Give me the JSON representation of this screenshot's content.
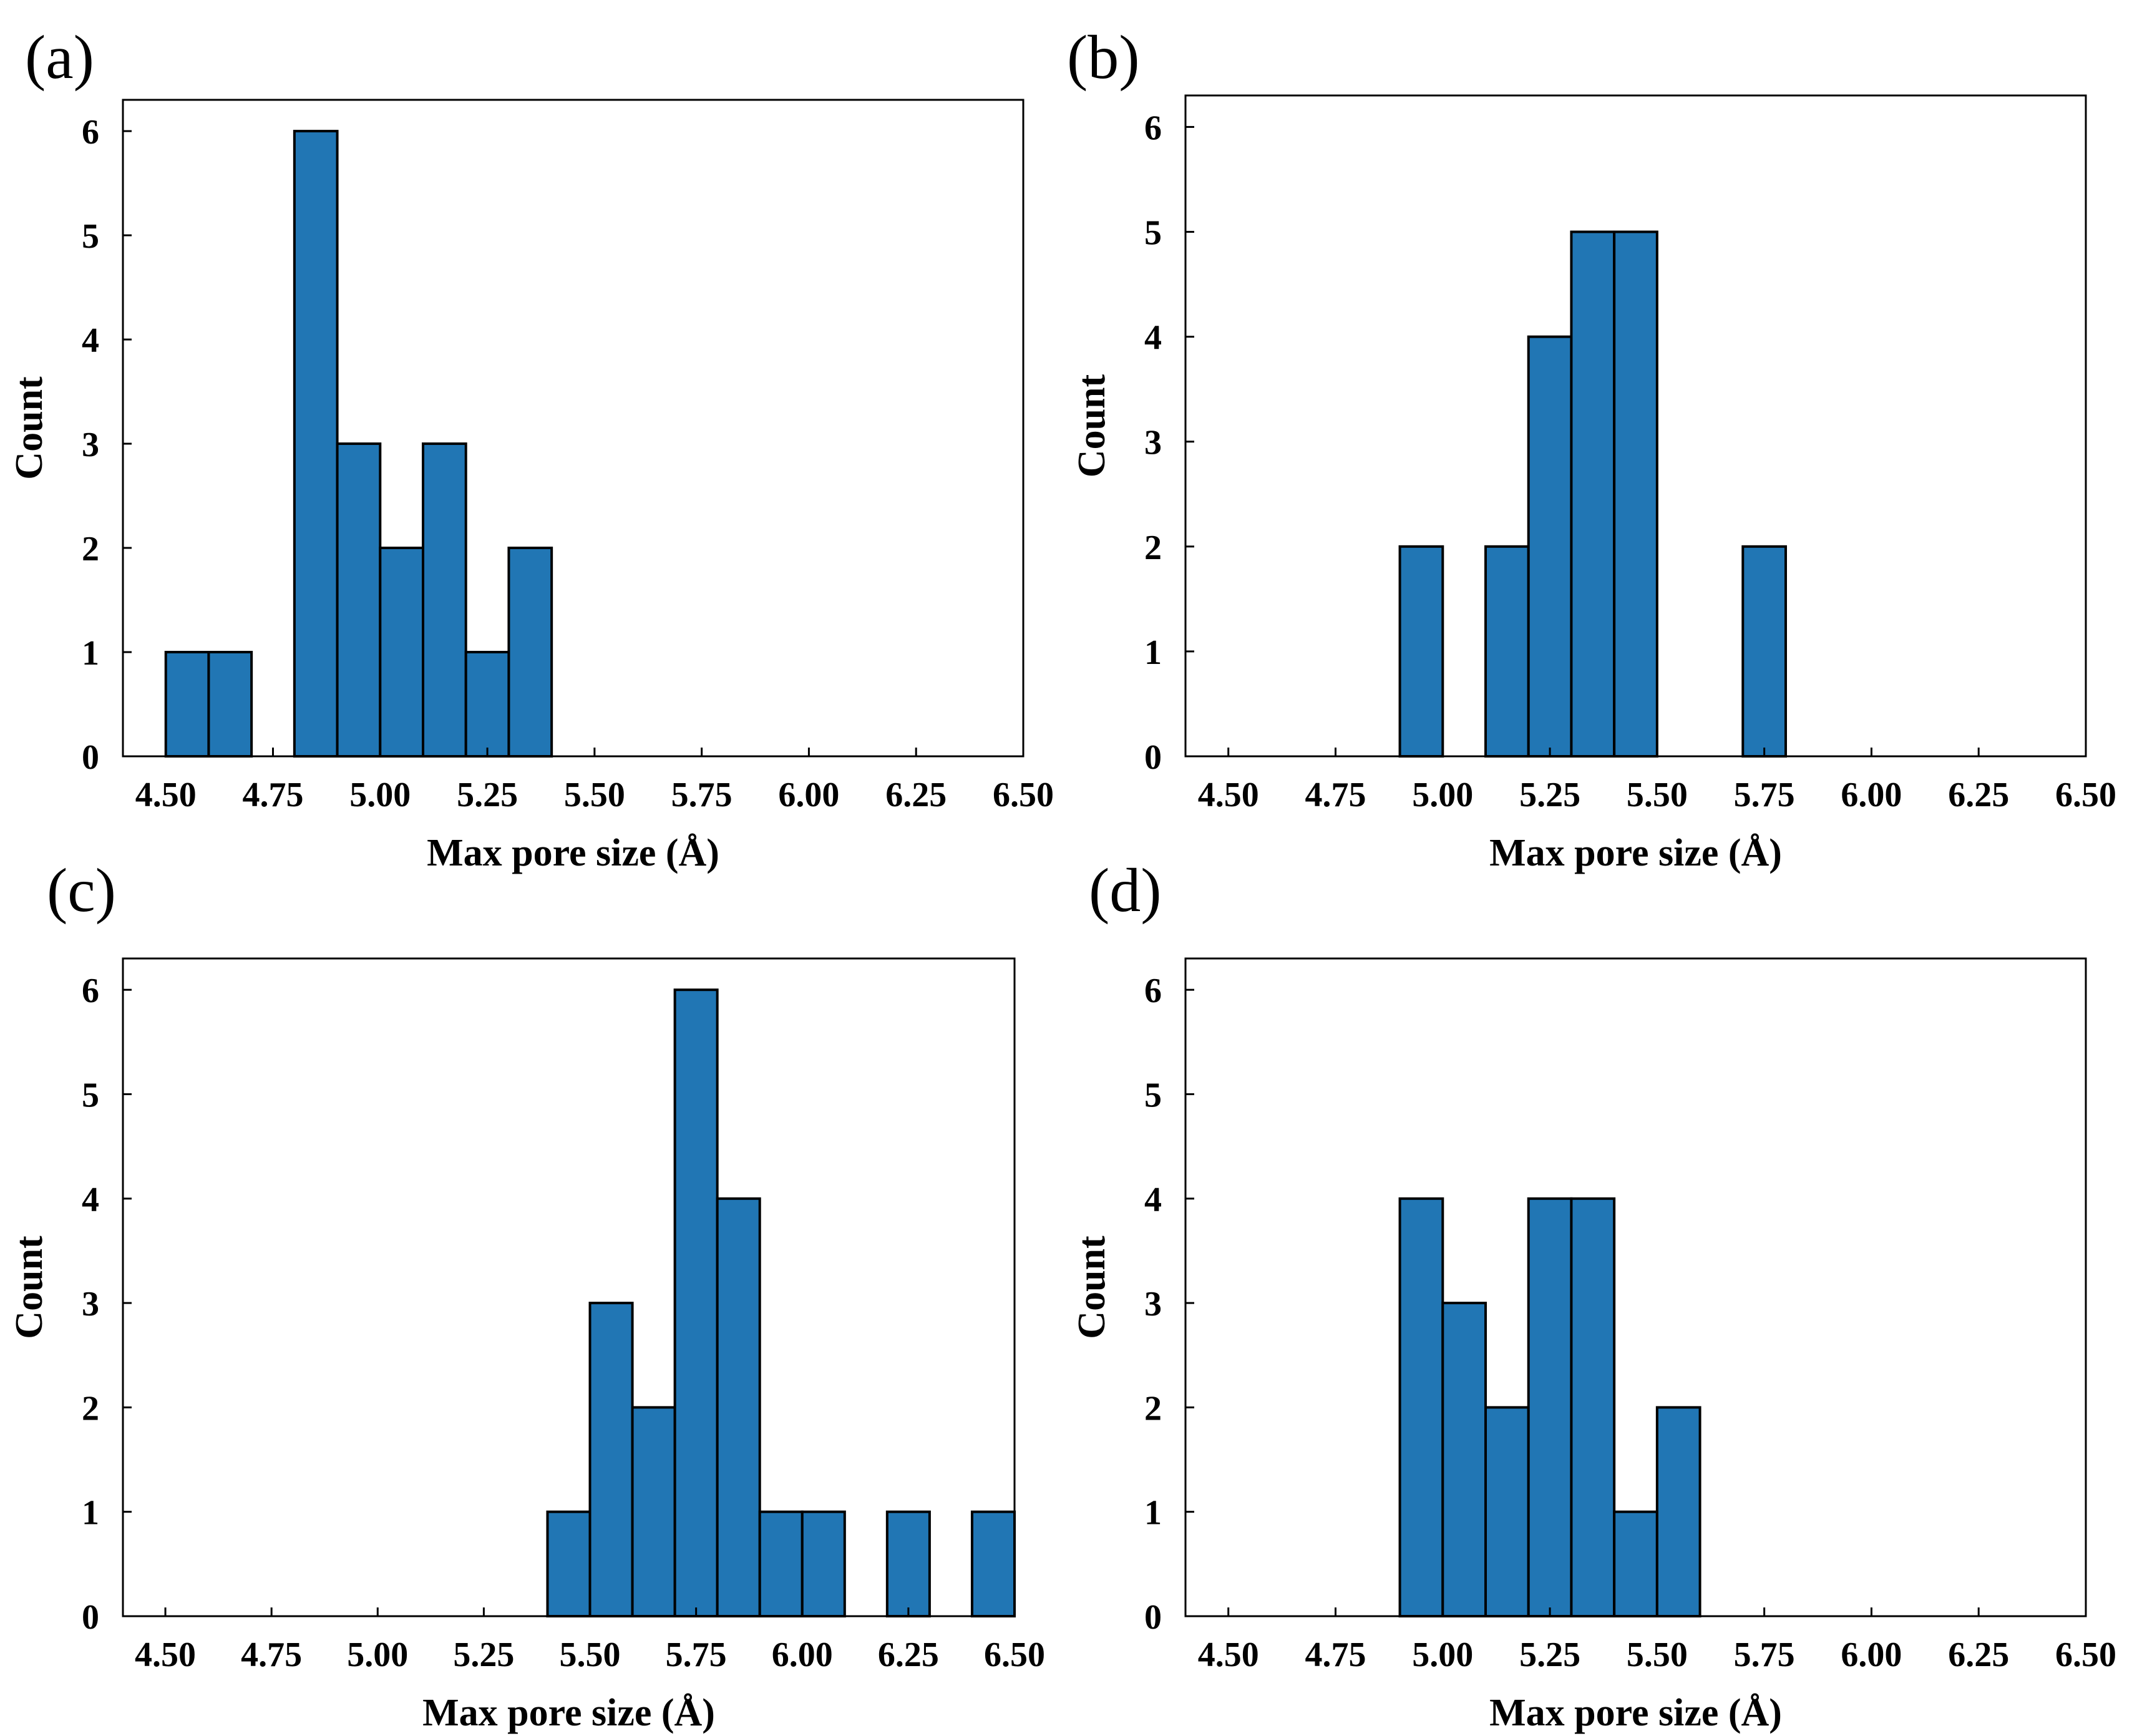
{
  "figure": {
    "bar_color": "#2176b4",
    "edge_color": "#000000"
  },
  "chart_data": [
    {
      "type": "bar",
      "panel_label": "(a)",
      "xlabel": "Max pore size (Å)",
      "ylabel": "Count",
      "xlim": [
        4.4,
        6.5
      ],
      "ylim": [
        0,
        6.3
      ],
      "xticks": [
        "4.50",
        "4.75",
        "5.00",
        "5.25",
        "5.50",
        "5.75",
        "6.00",
        "6.25",
        "6.50"
      ],
      "xtick_values": [
        4.5,
        4.75,
        5.0,
        5.25,
        5.5,
        5.75,
        6.0,
        6.25,
        6.5
      ],
      "yticks": [
        "0",
        "1",
        "2",
        "3",
        "4",
        "5",
        "6"
      ],
      "bin_width": 0.1,
      "bins": [
        {
          "x0": 4.5,
          "count": 1
        },
        {
          "x0": 4.6,
          "count": 1
        },
        {
          "x0": 4.8,
          "count": 6
        },
        {
          "x0": 4.9,
          "count": 3
        },
        {
          "x0": 5.0,
          "count": 2
        },
        {
          "x0": 5.1,
          "count": 3
        },
        {
          "x0": 5.2,
          "count": 1
        },
        {
          "x0": 5.3,
          "count": 2
        }
      ]
    },
    {
      "type": "bar",
      "panel_label": "(b)",
      "xlabel": "Max pore size (Å)",
      "ylabel": "Count",
      "xlim": [
        4.4,
        6.5
      ],
      "ylim": [
        0,
        6.3
      ],
      "xticks": [
        "4.50",
        "4.75",
        "5.00",
        "5.25",
        "5.50",
        "5.75",
        "6.00",
        "6.25",
        "6.50"
      ],
      "xtick_values": [
        4.5,
        4.75,
        5.0,
        5.25,
        5.5,
        5.75,
        6.0,
        6.25,
        6.5
      ],
      "yticks": [
        "0",
        "1",
        "2",
        "3",
        "4",
        "5",
        "6"
      ],
      "bin_width": 0.1,
      "bins": [
        {
          "x0": 4.9,
          "count": 2
        },
        {
          "x0": 5.1,
          "count": 2
        },
        {
          "x0": 5.2,
          "count": 4
        },
        {
          "x0": 5.3,
          "count": 5
        },
        {
          "x0": 5.4,
          "count": 5
        },
        {
          "x0": 5.7,
          "count": 2
        }
      ]
    },
    {
      "type": "bar",
      "panel_label": "(c)",
      "xlabel": "Max pore size (Å)",
      "ylabel": "Count",
      "xlim": [
        4.4,
        6.5
      ],
      "ylim": [
        0,
        6.3
      ],
      "xticks": [
        "4.50",
        "4.75",
        "5.00",
        "5.25",
        "5.50",
        "5.75",
        "6.00",
        "6.25",
        "6.50"
      ],
      "xtick_values": [
        4.5,
        4.75,
        5.0,
        5.25,
        5.5,
        5.75,
        6.0,
        6.25,
        6.5
      ],
      "yticks": [
        "0",
        "1",
        "2",
        "3",
        "4",
        "5",
        "6"
      ],
      "bin_width": 0.1,
      "bins": [
        {
          "x0": 5.4,
          "count": 1
        },
        {
          "x0": 5.5,
          "count": 3
        },
        {
          "x0": 5.6,
          "count": 2
        },
        {
          "x0": 5.7,
          "count": 6
        },
        {
          "x0": 5.8,
          "count": 4
        },
        {
          "x0": 5.9,
          "count": 1
        },
        {
          "x0": 6.0,
          "count": 1
        },
        {
          "x0": 6.2,
          "count": 1
        },
        {
          "x0": 6.4,
          "count": 1
        }
      ]
    },
    {
      "type": "bar",
      "panel_label": "(d)",
      "xlabel": "Max pore size (Å)",
      "ylabel": "Count",
      "xlim": [
        4.4,
        6.5
      ],
      "ylim": [
        0,
        6.3
      ],
      "xticks": [
        "4.50",
        "4.75",
        "5.00",
        "5.25",
        "5.50",
        "5.75",
        "6.00",
        "6.25",
        "6.50"
      ],
      "xtick_values": [
        4.5,
        4.75,
        5.0,
        5.25,
        5.5,
        5.75,
        6.0,
        6.25,
        6.5
      ],
      "yticks": [
        "0",
        "1",
        "2",
        "3",
        "4",
        "5",
        "6"
      ],
      "bin_width": 0.1,
      "bins": [
        {
          "x0": 4.9,
          "count": 4
        },
        {
          "x0": 5.0,
          "count": 3
        },
        {
          "x0": 5.1,
          "count": 2
        },
        {
          "x0": 5.2,
          "count": 4
        },
        {
          "x0": 5.3,
          "count": 4
        },
        {
          "x0": 5.4,
          "count": 1
        },
        {
          "x0": 5.5,
          "count": 2
        }
      ]
    }
  ]
}
